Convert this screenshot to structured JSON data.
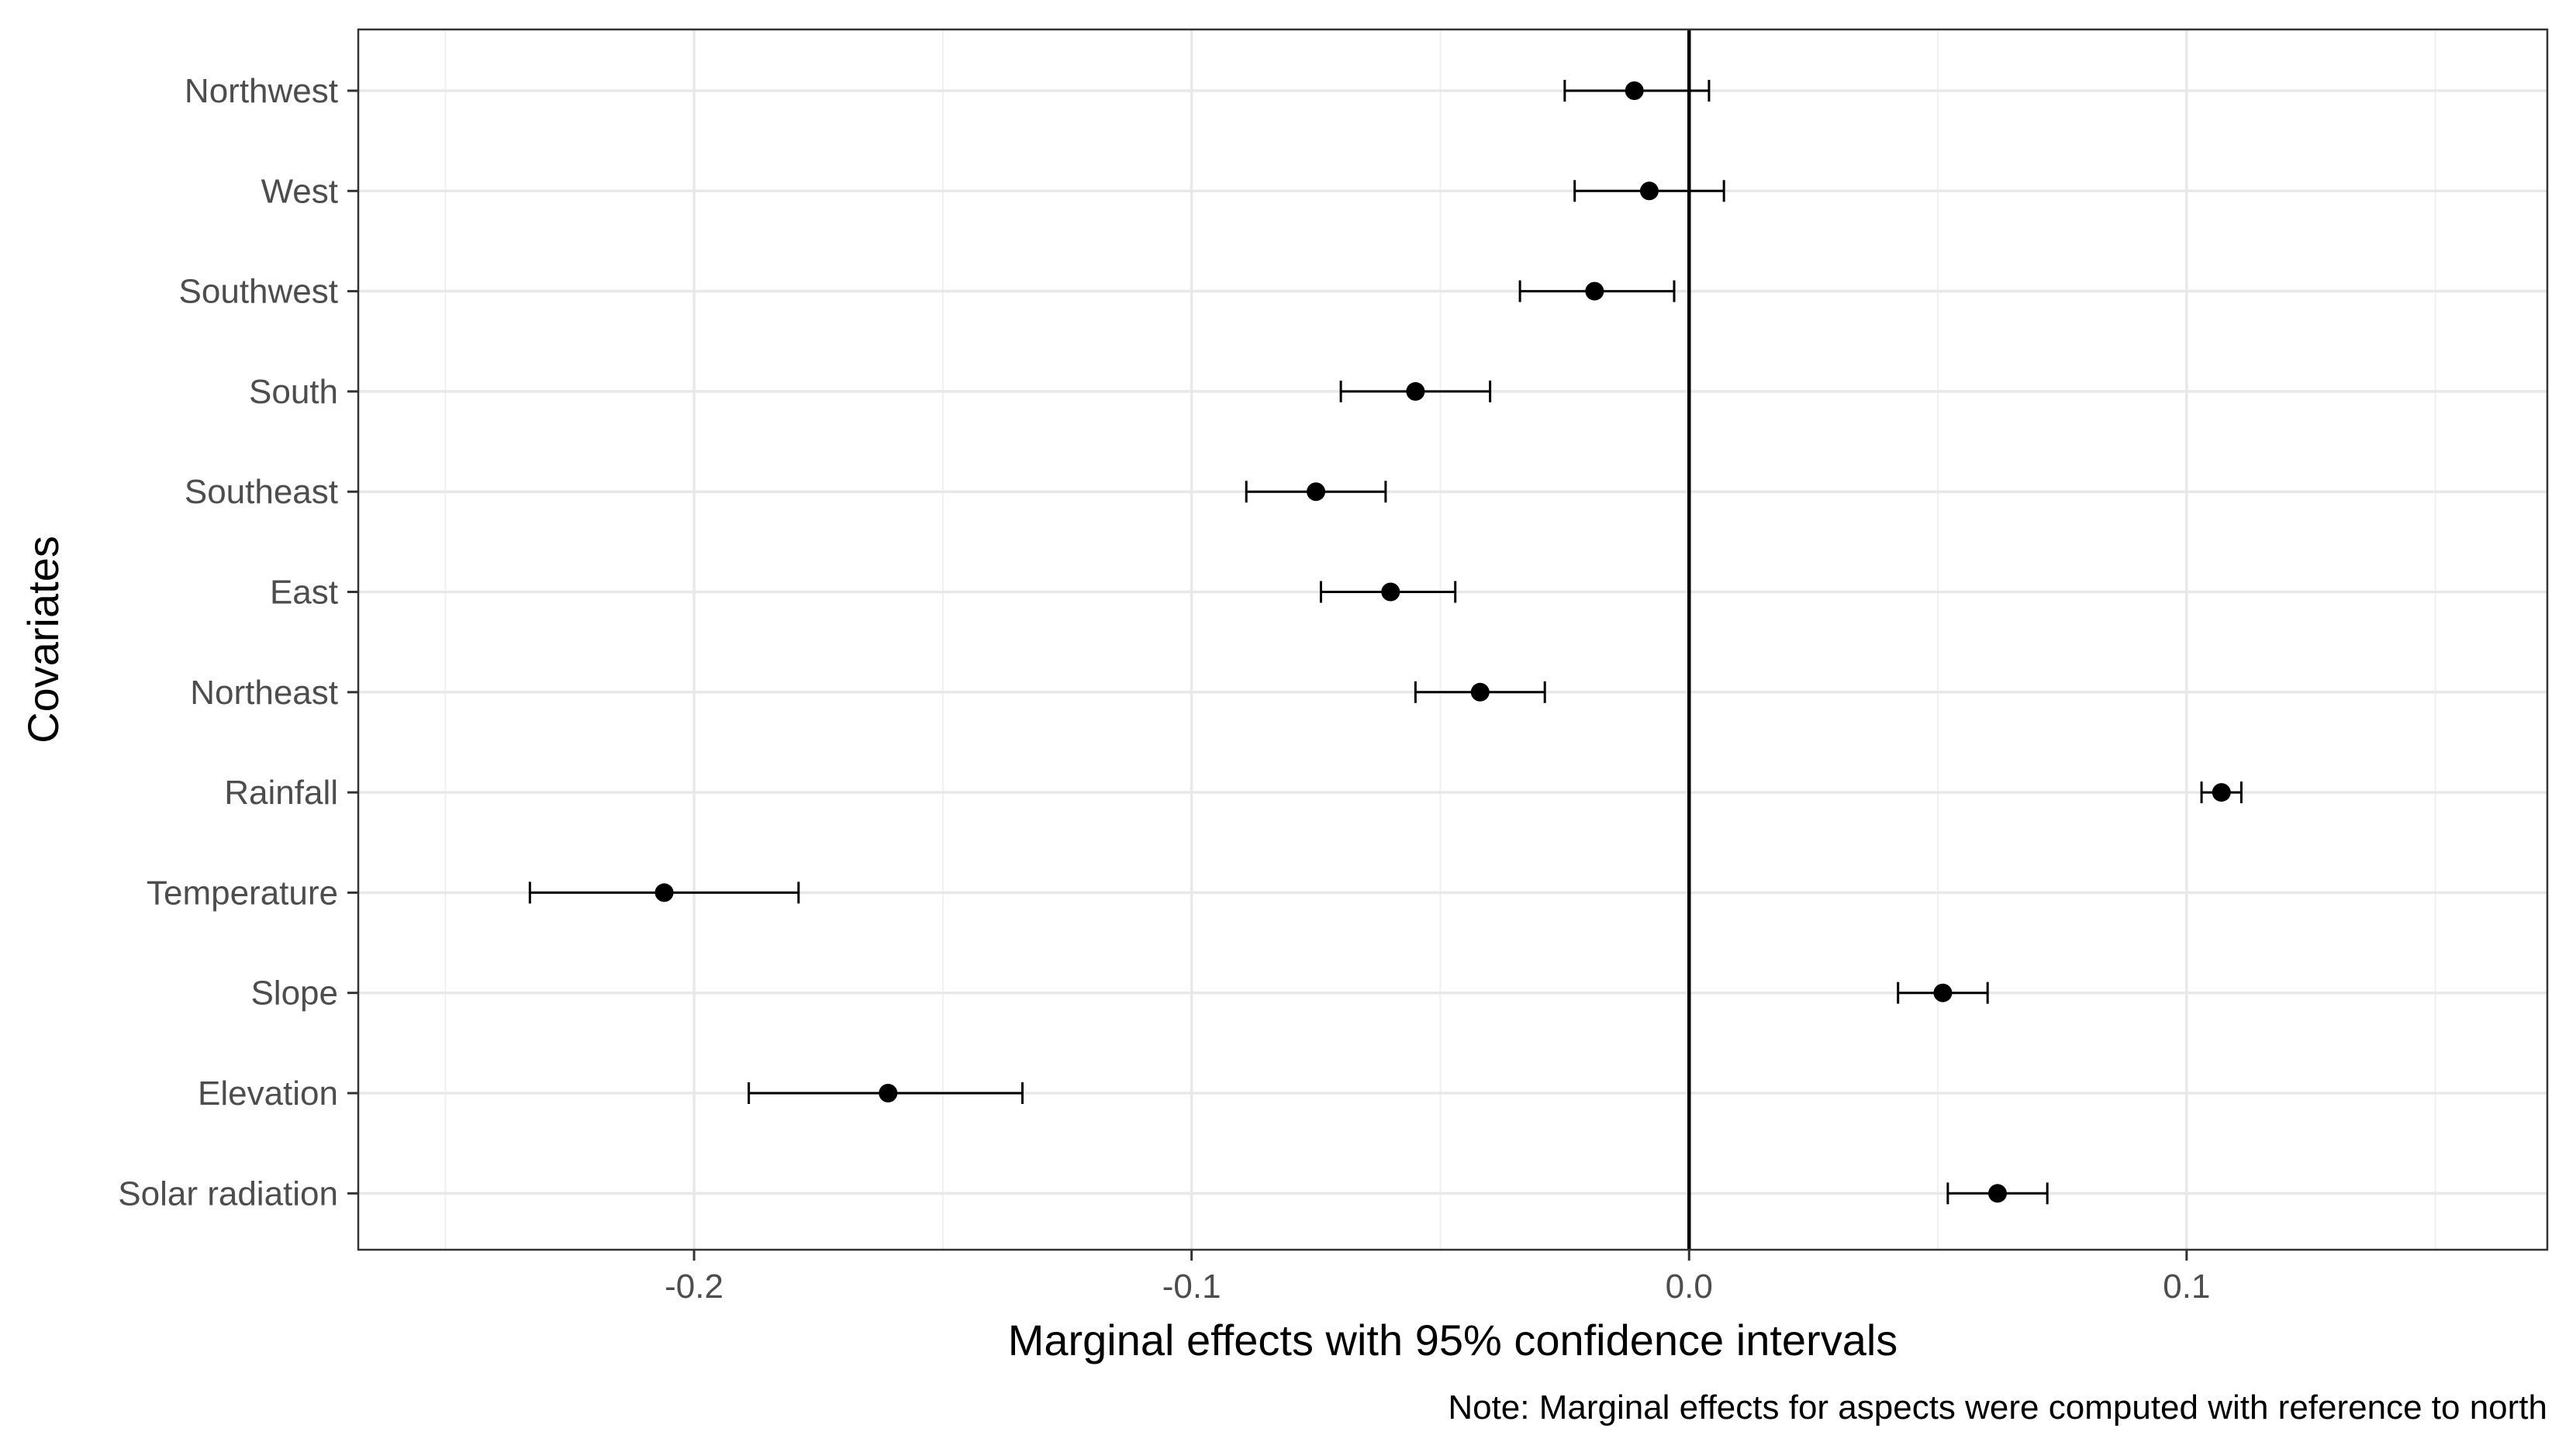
{
  "chart_data": {
    "type": "forest",
    "xlabel": "Marginal effects with 95% confidence intervals",
    "ylabel": "Covariates",
    "caption": "Note: Marginal effects for aspects were computed with reference to north",
    "xlim": [
      -0.2675,
      0.1725
    ],
    "xticks": [
      -0.2,
      -0.1,
      0.0,
      0.1
    ],
    "xtick_labels": [
      "-0.2",
      "-0.1",
      "0.0",
      "0.1"
    ],
    "reference_line": 0.0,
    "grid": true,
    "categories": [
      "Northwest",
      "West",
      "Southwest",
      "South",
      "Southeast",
      "East",
      "Northeast",
      "Rainfall",
      "Temperature",
      "Slope",
      "Elevation",
      "Solar radiation"
    ],
    "estimates": [
      -0.011,
      -0.008,
      -0.019,
      -0.055,
      -0.075,
      -0.06,
      -0.042,
      0.107,
      -0.206,
      0.051,
      -0.161,
      0.062
    ],
    "lower": [
      -0.025,
      -0.023,
      -0.034,
      -0.07,
      -0.089,
      -0.074,
      -0.055,
      0.103,
      -0.233,
      0.042,
      -0.189,
      0.052
    ],
    "upper": [
      0.004,
      0.007,
      -0.003,
      -0.04,
      -0.061,
      -0.047,
      -0.029,
      0.111,
      -0.179,
      0.06,
      -0.134,
      0.072
    ]
  }
}
